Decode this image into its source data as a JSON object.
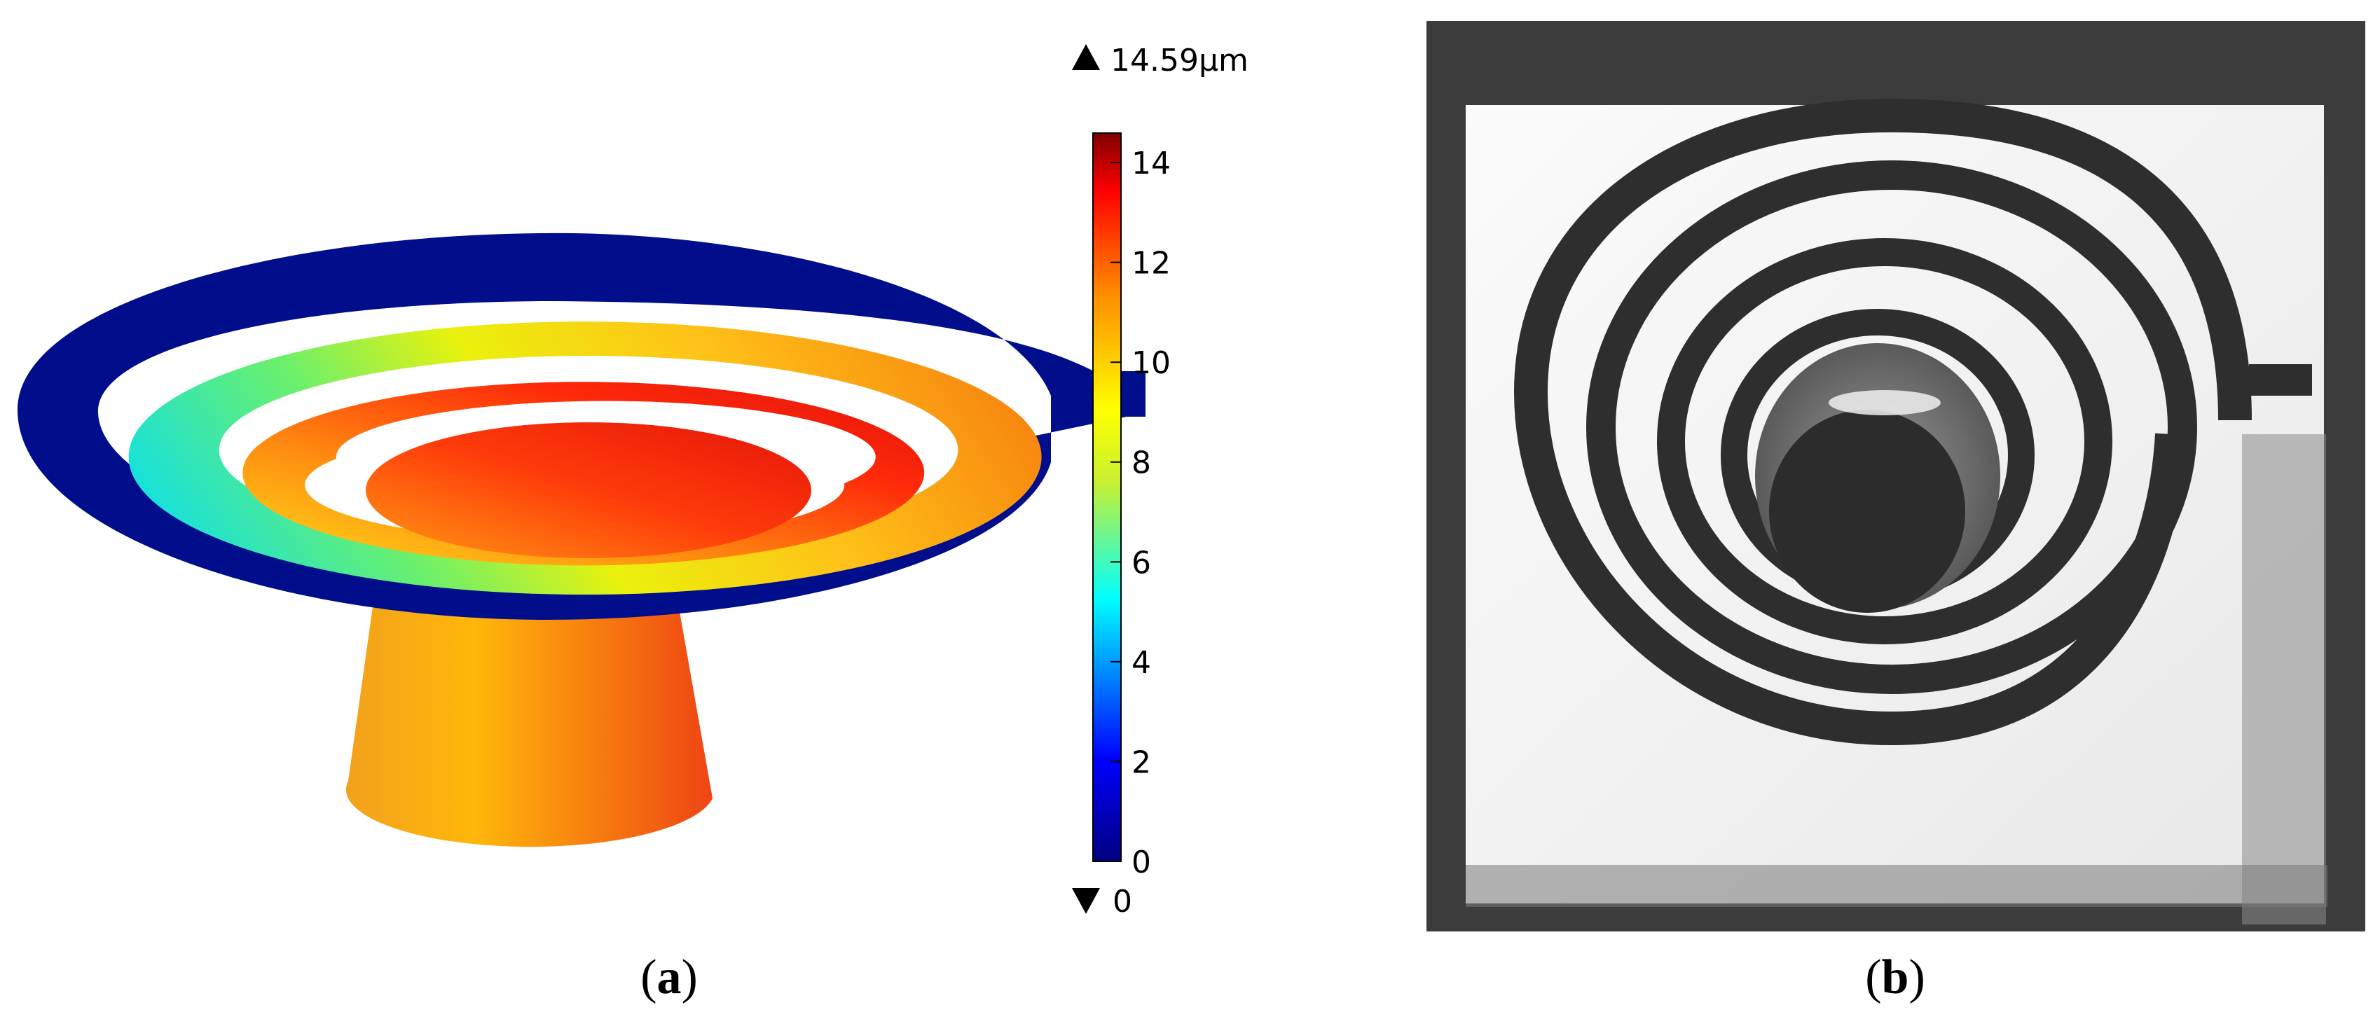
{
  "panel_a": {
    "caption_letter": "a",
    "colorbar": {
      "max_label": "14.59µm",
      "min_label": "0",
      "max_value": 14.59,
      "min_value": 0,
      "ticks": [
        "0",
        "2",
        "4",
        "6",
        "8",
        "10",
        "12",
        "14"
      ],
      "colormap": [
        "#00007f",
        "#0000ff",
        "#00ffff",
        "#c8f032",
        "#ffff00",
        "#ff8c00",
        "#ff0000",
        "#7f0000"
      ]
    }
  },
  "panel_b": {
    "caption_letter": "b"
  },
  "colors": {
    "base": "#f39a1c",
    "outer_ring": "#00108f",
    "photo_frame": "#3a3a3a"
  }
}
